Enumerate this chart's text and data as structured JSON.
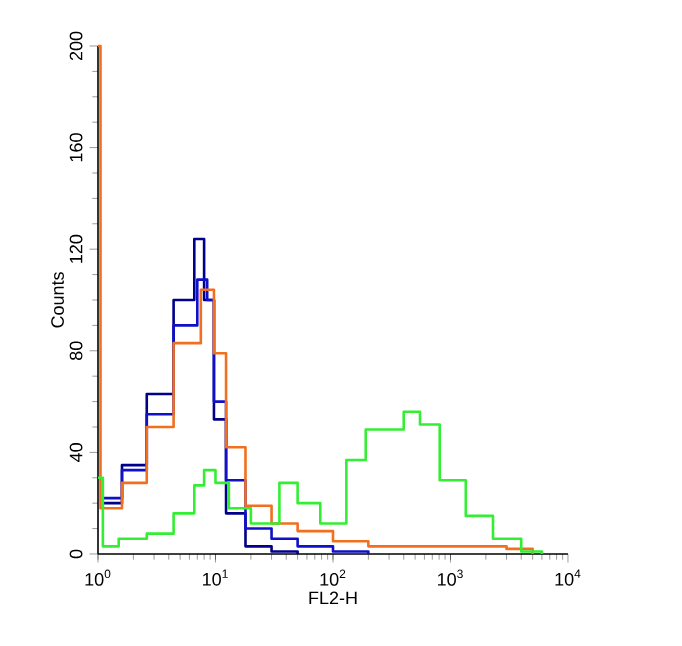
{
  "chart_data": {
    "type": "step",
    "xlabel": "FL2-H",
    "ylabel": "Counts",
    "log": "x",
    "xlim": [
      1,
      10000
    ],
    "ylim": [
      0,
      200
    ],
    "xticks": [
      {
        "value": 1,
        "label": "10$^{0}$"
      },
      {
        "value": 10,
        "label": "10$^{1}$"
      },
      {
        "value": 100,
        "label": "10$^{2}$"
      },
      {
        "value": 1000,
        "label": "10$^{3}$"
      },
      {
        "value": 10000,
        "label": "10$^{4}$"
      }
    ],
    "yticks": [
      0,
      40,
      80,
      120,
      160,
      200
    ],
    "series": [
      {
        "color": "#00008b",
        "x": [
          1.1,
          1.6,
          2.6,
          4.4,
          6.6,
          8,
          9.7,
          12.3,
          18,
          30,
          50
        ],
        "values": [
          20,
          35,
          63,
          100,
          124,
          100,
          53,
          16,
          3,
          1,
          0
        ]
      },
      {
        "color": "#1010c8",
        "x": [
          1.1,
          1.6,
          2.6,
          4.4,
          7,
          8.5,
          9.7,
          12.3,
          18,
          30,
          50,
          100,
          200
        ],
        "values": [
          22,
          33,
          55,
          90,
          108,
          100,
          60,
          29,
          10,
          6,
          3,
          1,
          0
        ]
      },
      {
        "color": "#f07020",
        "x": [
          1,
          1.05,
          1.6,
          2.6,
          4.4,
          7.5,
          9.7,
          12.3,
          18,
          30,
          50,
          100,
          200,
          1000,
          3000,
          5000
        ],
        "values": [
          200,
          18,
          28,
          50,
          83,
          104,
          79,
          42,
          19,
          12,
          9,
          5,
          3,
          3,
          2,
          0
        ]
      },
      {
        "color": "#33ee33",
        "x": [
          1,
          1.1,
          1.5,
          2.6,
          4.4,
          6.6,
          8,
          10,
          13,
          20,
          35,
          50,
          78,
          130,
          190,
          400,
          550,
          810,
          1350,
          2300,
          4000,
          6000
        ],
        "values": [
          30,
          3,
          6,
          8,
          16,
          27,
          33,
          28,
          18,
          12,
          28,
          20,
          12,
          37,
          49,
          56,
          51,
          29,
          15,
          6,
          1,
          0
        ]
      }
    ]
  }
}
